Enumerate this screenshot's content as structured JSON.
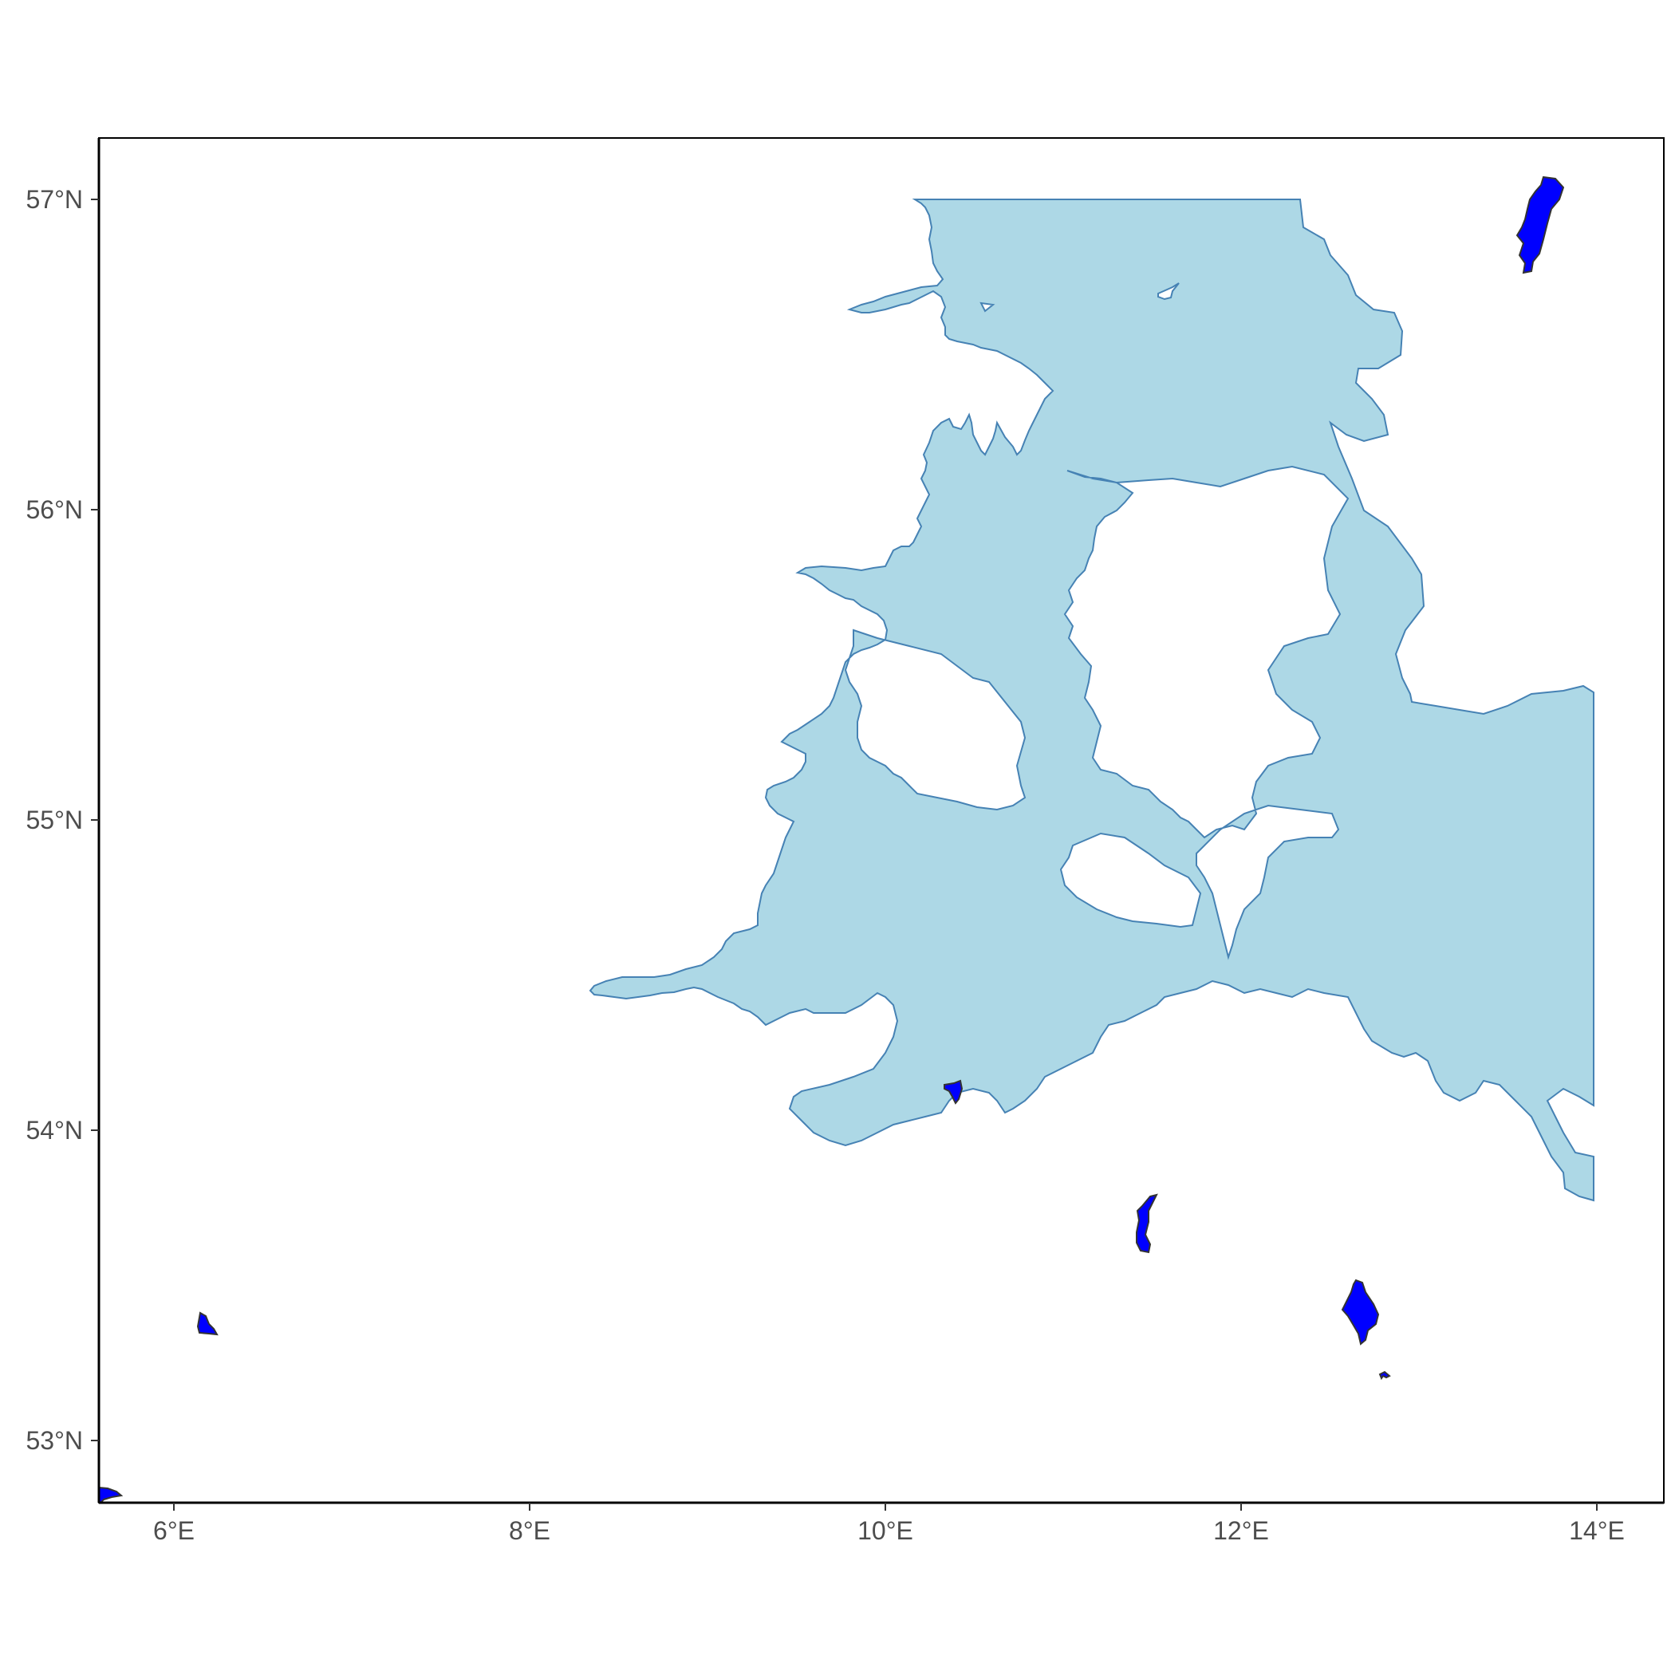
{
  "map": {
    "projection": "lon-lat",
    "x_range_lon": [
      5.55,
      14.4
    ],
    "y_range_lat": [
      52.8,
      57.2
    ],
    "grid": false,
    "axes": {
      "x_ticks": [
        {
          "value": 6,
          "label": "6°E"
        },
        {
          "value": 8,
          "label": "8°E"
        },
        {
          "value": 10,
          "label": "10°E"
        },
        {
          "value": 12,
          "label": "12°E"
        },
        {
          "value": 14,
          "label": "14°E"
        }
      ],
      "y_ticks": [
        {
          "value": 53,
          "label": "53°N"
        },
        {
          "value": 54,
          "label": "54°N"
        },
        {
          "value": 55,
          "label": "55°N"
        },
        {
          "value": 56,
          "label": "56°N"
        },
        {
          "value": 57,
          "label": "57°N"
        }
      ]
    },
    "layers": {
      "sea": {
        "fill": "#add8e6",
        "stroke": "#4682b4"
      },
      "points": {
        "fill": "#0000ff",
        "stroke": "#333333"
      }
    },
    "features": [
      {
        "name": "sea-region",
        "kind": "polygon",
        "layer": "sea"
      },
      {
        "name": "land-danish-islands",
        "kind": "hole",
        "layer": "land"
      },
      {
        "name": "blue-patch-east-of-skagerrak",
        "kind": "polygon",
        "layer": "points",
        "lon": 13.7,
        "lat": 56.9
      },
      {
        "name": "blue-patch-near-10-4e",
        "kind": "polygon",
        "layer": "points",
        "lon": 10.4,
        "lat": 54.1
      },
      {
        "name": "blue-patch-near-11-5e",
        "kind": "polygon",
        "layer": "points",
        "lon": 11.5,
        "lat": 53.7
      },
      {
        "name": "blue-patch-near-12-7e",
        "kind": "polygon",
        "layer": "points",
        "lon": 12.7,
        "lat": 53.4
      },
      {
        "name": "blue-patch-near-12-8e",
        "kind": "polygon",
        "layer": "points",
        "lon": 12.8,
        "lat": 53.2
      },
      {
        "name": "blue-patch-near-6-2e",
        "kind": "polygon",
        "layer": "points",
        "lon": 6.2,
        "lat": 53.35
      },
      {
        "name": "blue-patch-at-5-6e",
        "kind": "polygon",
        "layer": "points",
        "lon": 5.6,
        "lat": 52.8
      }
    ]
  }
}
